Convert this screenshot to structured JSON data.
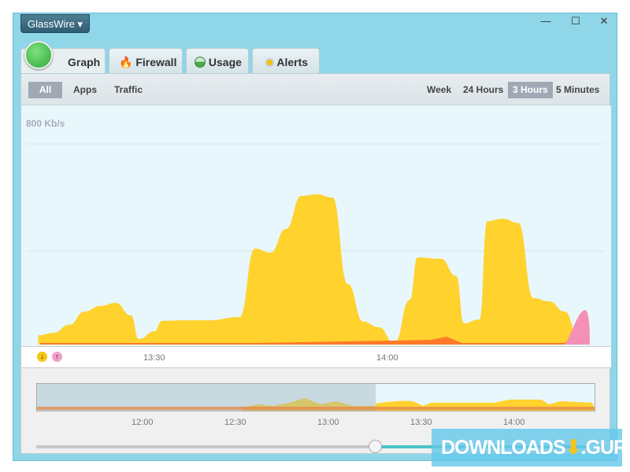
{
  "app": {
    "brand_menu": "GlassWire ▾",
    "window_controls": [
      "—",
      "☐",
      "✕"
    ]
  },
  "tabs": [
    {
      "label": "Graph",
      "icon": "glasswire-logo-icon"
    },
    {
      "label": "Firewall",
      "icon": "flame-icon"
    },
    {
      "label": "Usage",
      "icon": "usage-pie-icon"
    },
    {
      "label": "Alerts",
      "icon": "alert-pin-icon"
    }
  ],
  "filters": {
    "items": [
      "All",
      "Apps",
      "Traffic"
    ],
    "selected": "All"
  },
  "ranges": {
    "items": [
      "Week",
      "24 Hours",
      "3 Hours",
      "5 Minutes"
    ],
    "selected": "3 Hours"
  },
  "graph": {
    "max_label": "800 Kb/s",
    "x_ticks": [
      "13:30",
      "14:00"
    ],
    "legend": [
      {
        "icon": "download-arrow-icon",
        "color": "#f5c518"
      },
      {
        "icon": "upload-arrow-icon",
        "color": "#f0a0c8"
      }
    ],
    "colors": {
      "download": "#ffd22e",
      "upload": "#ff7a28",
      "upload_peak": "#f490b4"
    },
    "download_kbps": [
      [
        "13:15",
        35
      ],
      [
        "13:17",
        44
      ],
      [
        "13:19",
        74
      ],
      [
        "13:21",
        124
      ],
      [
        "13:23",
        145
      ],
      [
        "13:25",
        156
      ],
      [
        "13:27",
        109
      ],
      [
        "13:28",
        21
      ],
      [
        "13:30",
        50
      ],
      [
        "13:31",
        89
      ],
      [
        "13:34",
        91
      ],
      [
        "13:37",
        91
      ],
      [
        "13:41",
        103
      ],
      [
        "13:43",
        360
      ],
      [
        "13:45",
        345
      ],
      [
        "13:47",
        434
      ],
      [
        "13:49",
        558
      ],
      [
        "13:51",
        564
      ],
      [
        "13:53",
        552
      ],
      [
        "13:55",
        227
      ],
      [
        "13:57",
        86
      ],
      [
        "13:59",
        65
      ],
      [
        "14:01",
        6
      ],
      [
        "14:03",
        168
      ],
      [
        "14:04",
        327
      ],
      [
        "14:07",
        322
      ],
      [
        "14:09",
        257
      ],
      [
        "14:10",
        80
      ],
      [
        "14:12",
        94
      ],
      [
        "14:13",
        463
      ],
      [
        "14:15",
        472
      ],
      [
        "14:17",
        457
      ],
      [
        "14:19",
        174
      ],
      [
        "14:21",
        162
      ],
      [
        "14:23",
        124
      ],
      [
        "14:25",
        6
      ]
    ]
  },
  "timeline": {
    "ticks": [
      "12:00",
      "12:30",
      "13:00",
      "13:30",
      "14:00"
    ]
  },
  "watermark": "DOWNLOADS",
  "watermark_suffix": ".GURU"
}
